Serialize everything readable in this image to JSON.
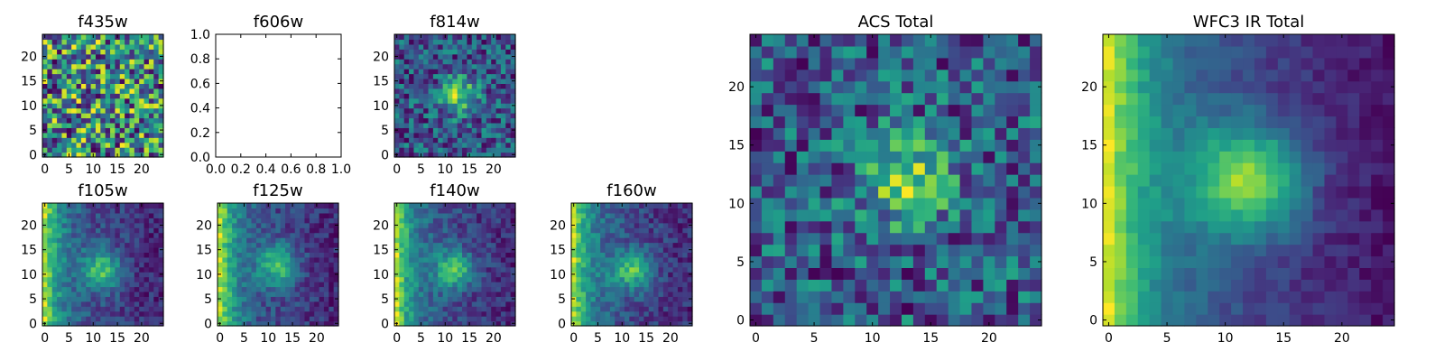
{
  "colormap": {
    "name": "viridis",
    "stops": [
      "#440154",
      "#482878",
      "#3e4989",
      "#31688e",
      "#26828e",
      "#1f9e89",
      "#35b779",
      "#6ece58",
      "#b5de2b",
      "#fde725"
    ]
  },
  "chart_data": [
    {
      "id": "f435w",
      "type": "heatmap",
      "title": "f435w",
      "grid": [
        25,
        25
      ],
      "pattern": "noise",
      "peak": [
        12,
        12
      ],
      "xticks": [
        "0",
        "5",
        "10",
        "15",
        "20"
      ],
      "yticks": [
        "0",
        "5",
        "10",
        "15",
        "20"
      ]
    },
    {
      "id": "f606w",
      "type": "empty",
      "title": "f606w",
      "xlim": [
        0,
        1
      ],
      "ylim": [
        0,
        1
      ],
      "xticks": [
        "0.0",
        "0.2",
        "0.4",
        "0.6",
        "0.8",
        "1.0"
      ],
      "yticks": [
        "0.0",
        "0.2",
        "0.4",
        "0.6",
        "0.8",
        "1.0"
      ]
    },
    {
      "id": "f814w",
      "type": "heatmap",
      "title": "f814w",
      "grid": [
        25,
        25
      ],
      "pattern": "blob-noisy",
      "peak": [
        13,
        12
      ],
      "xticks": [
        "0",
        "5",
        "10",
        "15",
        "20"
      ],
      "yticks": [
        "0",
        "5",
        "10",
        "15",
        "20"
      ]
    },
    {
      "id": "f105w",
      "type": "heatmap",
      "title": "f105w",
      "grid": [
        25,
        25
      ],
      "pattern": "blob-gradient",
      "peak": [
        12,
        11
      ],
      "xticks": [
        "0",
        "5",
        "10",
        "15",
        "20"
      ],
      "yticks": [
        "0",
        "5",
        "10",
        "15",
        "20"
      ]
    },
    {
      "id": "f125w",
      "type": "heatmap",
      "title": "f125w",
      "grid": [
        25,
        25
      ],
      "pattern": "blob-gradient",
      "peak": [
        12,
        12
      ],
      "xticks": [
        "0",
        "5",
        "10",
        "15",
        "20"
      ],
      "yticks": [
        "0",
        "5",
        "10",
        "15",
        "20"
      ]
    },
    {
      "id": "f140w",
      "type": "heatmap",
      "title": "f140w",
      "grid": [
        25,
        25
      ],
      "pattern": "blob-gradient",
      "peak": [
        12,
        11
      ],
      "xticks": [
        "0",
        "5",
        "10",
        "15",
        "20"
      ],
      "yticks": [
        "0",
        "5",
        "10",
        "15",
        "20"
      ]
    },
    {
      "id": "f160w",
      "type": "heatmap",
      "title": "f160w",
      "grid": [
        25,
        25
      ],
      "pattern": "blob-gradient",
      "peak": [
        12,
        11
      ],
      "xticks": [
        "0",
        "5",
        "10",
        "15",
        "20"
      ],
      "yticks": [
        "0",
        "5",
        "10",
        "15",
        "20"
      ]
    },
    {
      "id": "acs_total",
      "type": "heatmap",
      "title": "ACS Total",
      "grid": [
        25,
        25
      ],
      "pattern": "blob-noisy",
      "peak": [
        13,
        12
      ],
      "xticks": [
        "0",
        "5",
        "10",
        "15",
        "20"
      ],
      "yticks": [
        "0",
        "5",
        "10",
        "15",
        "20"
      ]
    },
    {
      "id": "wfc3_total",
      "type": "heatmap",
      "title": "WFC3 IR Total",
      "grid": [
        25,
        25
      ],
      "pattern": "blob-smooth",
      "peak": [
        12,
        12
      ],
      "xticks": [
        "0",
        "5",
        "10",
        "15",
        "20"
      ],
      "yticks": [
        "0",
        "5",
        "10",
        "15",
        "20"
      ]
    }
  ]
}
